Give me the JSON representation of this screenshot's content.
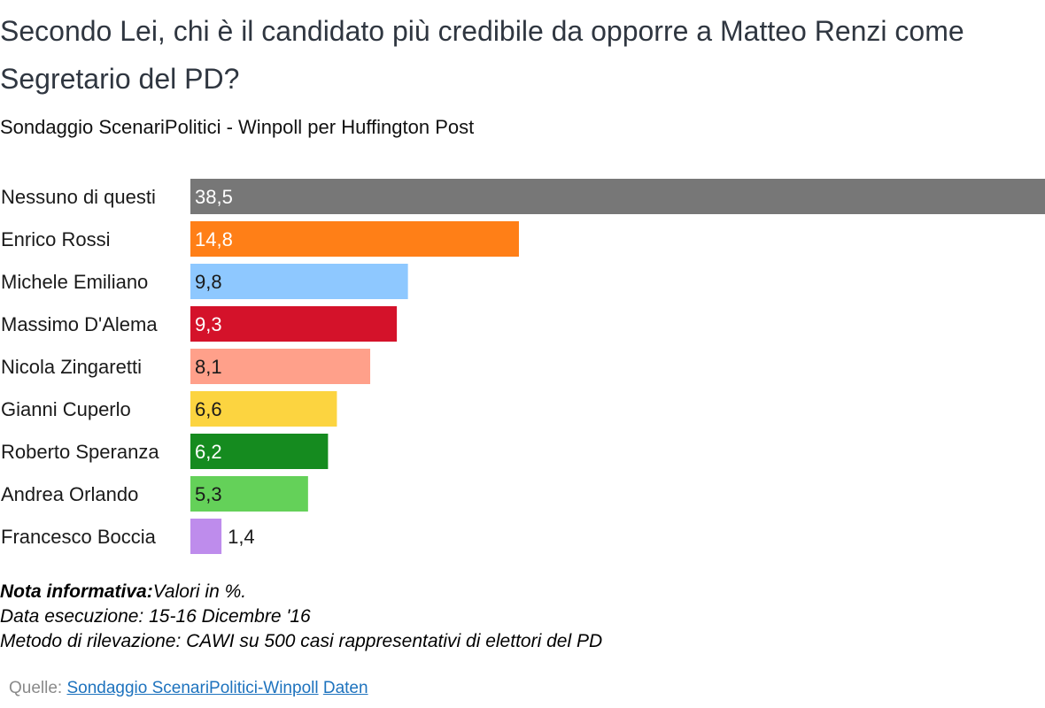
{
  "header": {
    "title": "Secondo Lei, chi è il candidato più credibile da opporre a Matteo Renzi come Segretario del PD?",
    "subtitle": "Sondaggio ScenariPolitici - Winpoll per Huffington Post"
  },
  "chart_data": {
    "type": "bar",
    "orientation": "horizontal",
    "title": "Secondo Lei, chi è il candidato più credibile da opporre a Matteo Renzi come Segretario del PD?",
    "subtitle": "Sondaggio ScenariPolitici - Winpoll per Huffington Post",
    "xlabel": "",
    "ylabel": "",
    "xlim": [
      0,
      38.5
    ],
    "grid": false,
    "legend": "none",
    "categories": [
      "Nessuno di questi",
      "Enrico Rossi",
      "Michele Emiliano",
      "Massimo D'Alema",
      "Nicola Zingaretti",
      "Gianni Cuperlo",
      "Roberto Speranza",
      "Andrea Orlando",
      "Francesco Boccia"
    ],
    "values": [
      38.5,
      14.8,
      9.8,
      9.3,
      8.1,
      6.6,
      6.2,
      5.3,
      1.4
    ],
    "value_labels": [
      "38,5",
      "14,8",
      "9,8",
      "9,3",
      "8,1",
      "6,6",
      "6,2",
      "5,3",
      "1,4"
    ],
    "colors": [
      "#777777",
      "#ff7f17",
      "#8ec8ff",
      "#d4122a",
      "#ffa08a",
      "#fcd440",
      "#158b1f",
      "#64d159",
      "#be8cec"
    ],
    "label_colors": [
      "#ffffff",
      "#ffffff",
      "#1a1a1a",
      "#ffffff",
      "#1a1a1a",
      "#1a1a1a",
      "#ffffff",
      "#1a1a1a",
      "#1a1a1a"
    ]
  },
  "notes": {
    "label": "Nota informativa:",
    "values_note": "Valori in %.",
    "date_line": "Data esecuzione: 15-16 Dicembre '16",
    "method_line": "Metodo di rilevazione: CAWI su 500 casi rappresentativi di elettori del PD"
  },
  "source": {
    "prefix": "Quelle:",
    "link_label": "Sondaggio ScenariPolitici-Winpoll",
    "data_link_label": "Daten"
  }
}
